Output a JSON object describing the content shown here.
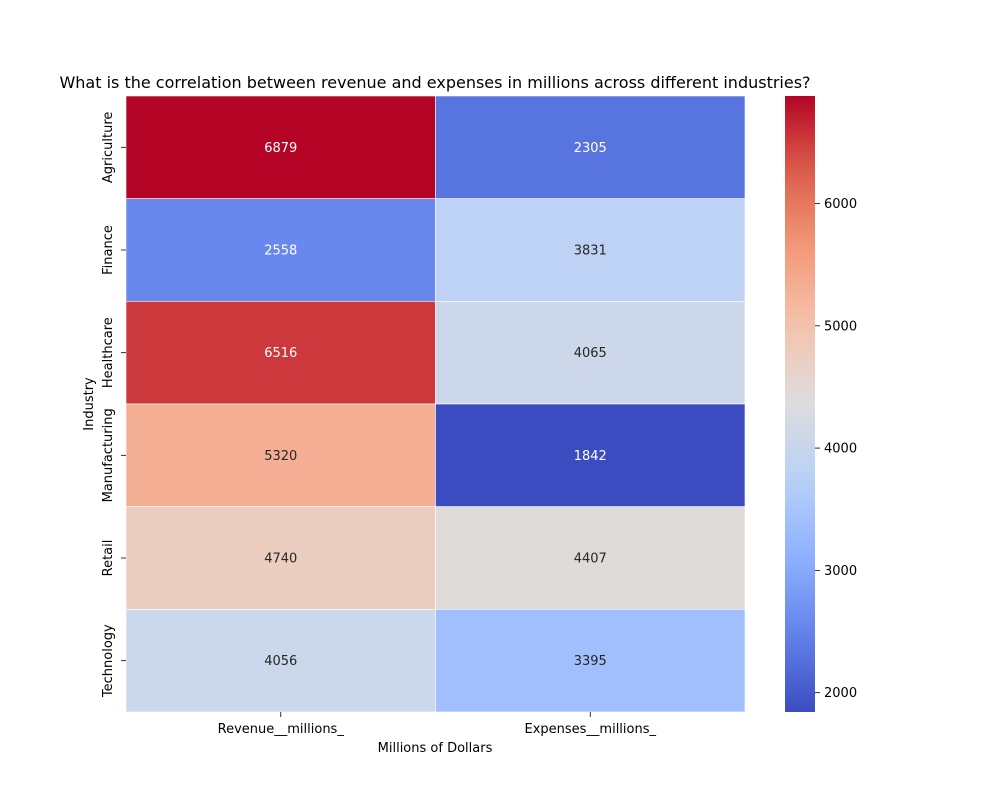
{
  "chart_data": {
    "type": "heatmap",
    "title": "What is the correlation between revenue and expenses in millions across different industries?",
    "xlabel": "Millions of Dollars",
    "ylabel": "Industry",
    "columns": [
      "Revenue__millions_",
      "Expenses__millions_"
    ],
    "rows": [
      "Agriculture",
      "Finance",
      "Healthcare",
      "Manufacturing",
      "Retail",
      "Technology"
    ],
    "values": [
      [
        6879,
        2305
      ],
      [
        2558,
        3831
      ],
      [
        6516,
        4065
      ],
      [
        5320,
        1842
      ],
      [
        4740,
        4407
      ],
      [
        4056,
        3395
      ]
    ],
    "colormap": "coolwarm",
    "color_range": [
      1842,
      6879
    ],
    "colorbar_ticks": [
      2000,
      3000,
      4000,
      5000,
      6000
    ],
    "annotations": true
  }
}
